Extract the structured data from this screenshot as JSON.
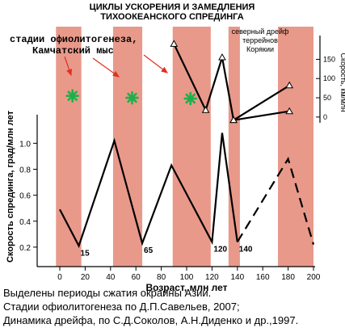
{
  "title_lines": [
    "ЦИКЛЫ УСКОРЕНИЯ И ЗАМЕДЛЕНИЯ",
    "ТИХООКЕАНСКОГО СПРЕДИНГА"
  ],
  "annotation_ophiolite": [
    "стадии офиолитогенеза,",
    "Камчатский мыс"
  ],
  "annotation_drift": [
    "северный дрейф",
    "террейнов",
    "Корякии"
  ],
  "caption_lines": [
    "Выделены периоды сжатия окраины Азии.",
    "Стадии офиолитогенеза по Д.П.Савельев, 2007;",
    "Динамика дрейфа, по С.Д.Соколов, А.Н.Диденко и др.,1997."
  ],
  "colors": {
    "band": "#e8998a",
    "star": "#1db04a",
    "arrow": "#e03020",
    "line": "#000000"
  },
  "chart_data": {
    "type": "line",
    "xlabel": "Возраст, млн лет",
    "ylabel": "Скорость спрединга, град/млн лет",
    "y2label": "Скорость, км/млн",
    "xlim": [
      0,
      200
    ],
    "ylim": [
      0.05,
      1.22
    ],
    "y2lim": [
      -15,
      195
    ],
    "x_ticks": [
      0,
      20,
      40,
      60,
      80,
      100,
      120,
      140,
      160,
      180,
      200
    ],
    "y_ticks": [
      0.2,
      0.4,
      0.6,
      0.8,
      1.0
    ],
    "y_tick_labels": [
      "0.2",
      "0.4",
      "0.6",
      "0.8",
      "1.0"
    ],
    "y2_ticks": [
      0,
      50,
      100,
      150
    ],
    "shaded_periods": [
      [
        -3,
        17
      ],
      [
        42,
        65
      ],
      [
        89,
        119
      ],
      [
        133,
        142
      ],
      [
        172,
        200
      ]
    ],
    "series": [
      {
        "axis": "left",
        "style": "solid",
        "x": [
          0,
          15,
          43,
          65,
          88,
          120,
          128,
          140
        ],
        "y": [
          0.49,
          0.21,
          1.02,
          0.23,
          0.83,
          0.24,
          1.08,
          0.24
        ]
      },
      {
        "axis": "left",
        "style": "dashed",
        "x": [
          140,
          180,
          200
        ],
        "y": [
          0.24,
          0.88,
          0.22
        ]
      },
      {
        "axis": "right",
        "style": "solid",
        "marker": "triangle",
        "x": [
          90,
          115,
          128,
          137,
          181
        ],
        "y": [
          190,
          18,
          155,
          -8,
          82
        ]
      },
      {
        "axis": "right",
        "style": "solid",
        "marker": "triangle",
        "x": [
          137,
          181
        ],
        "y": [
          -8,
          15
        ]
      }
    ],
    "min_labels": [
      {
        "x": 15,
        "y": 0.21,
        "text": "15"
      },
      {
        "x": 65,
        "y": 0.23,
        "text": "65"
      },
      {
        "x": 120,
        "y": 0.24,
        "text": "120"
      },
      {
        "x": 140,
        "y": 0.24,
        "text": "140"
      }
    ],
    "stars": [
      {
        "x": 10,
        "y": 55
      },
      {
        "x": 57,
        "y": 50
      },
      {
        "x": 103,
        "y": 48
      }
    ]
  }
}
